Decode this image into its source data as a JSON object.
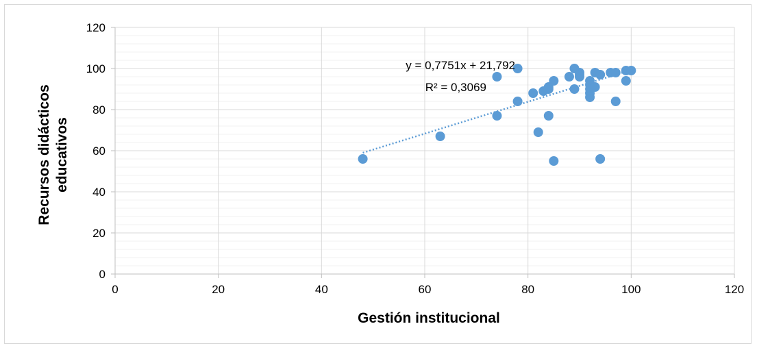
{
  "chart_data": {
    "type": "scatter",
    "xlabel": "Gestión institucional",
    "ylabel_lines": [
      "Recursos didácticos",
      "educativos"
    ],
    "xlim": [
      0,
      120
    ],
    "ylim": [
      0,
      120
    ],
    "x_major_step": 20,
    "y_major_step": 20,
    "y_minor_step": 4,
    "grid": true,
    "marker_color": "#5b9bd5",
    "trendline_color": "#5b9bd5",
    "trendline": {
      "type": "linear",
      "slope": 0.7751,
      "intercept": 21.792,
      "x_range": [
        48,
        100
      ],
      "equation_label": "y = 0,7751x + 21,792",
      "r2_label": "R² = 0,3069"
    },
    "x_ticks": [
      "0",
      "20",
      "40",
      "60",
      "80",
      "100",
      "120"
    ],
    "y_ticks": [
      "0",
      "20",
      "40",
      "60",
      "80",
      "100",
      "120"
    ],
    "points": [
      [
        48,
        56
      ],
      [
        63,
        67
      ],
      [
        74,
        77
      ],
      [
        74,
        96
      ],
      [
        78,
        84
      ],
      [
        78,
        100
      ],
      [
        81,
        88
      ],
      [
        82,
        69
      ],
      [
        83,
        89
      ],
      [
        84,
        77
      ],
      [
        84,
        90
      ],
      [
        84,
        91
      ],
      [
        85,
        94
      ],
      [
        85,
        55
      ],
      [
        88,
        96
      ],
      [
        89,
        100
      ],
      [
        89,
        90
      ],
      [
        90,
        98
      ],
      [
        90,
        96
      ],
      [
        90,
        97
      ],
      [
        92,
        94
      ],
      [
        92,
        92
      ],
      [
        92,
        90
      ],
      [
        92,
        88
      ],
      [
        92,
        86
      ],
      [
        93,
        98
      ],
      [
        93,
        91
      ],
      [
        94,
        97
      ],
      [
        94,
        56
      ],
      [
        96,
        98
      ],
      [
        97,
        98
      ],
      [
        97,
        84
      ],
      [
        99,
        99
      ],
      [
        99,
        94
      ],
      [
        100,
        99
      ]
    ]
  }
}
